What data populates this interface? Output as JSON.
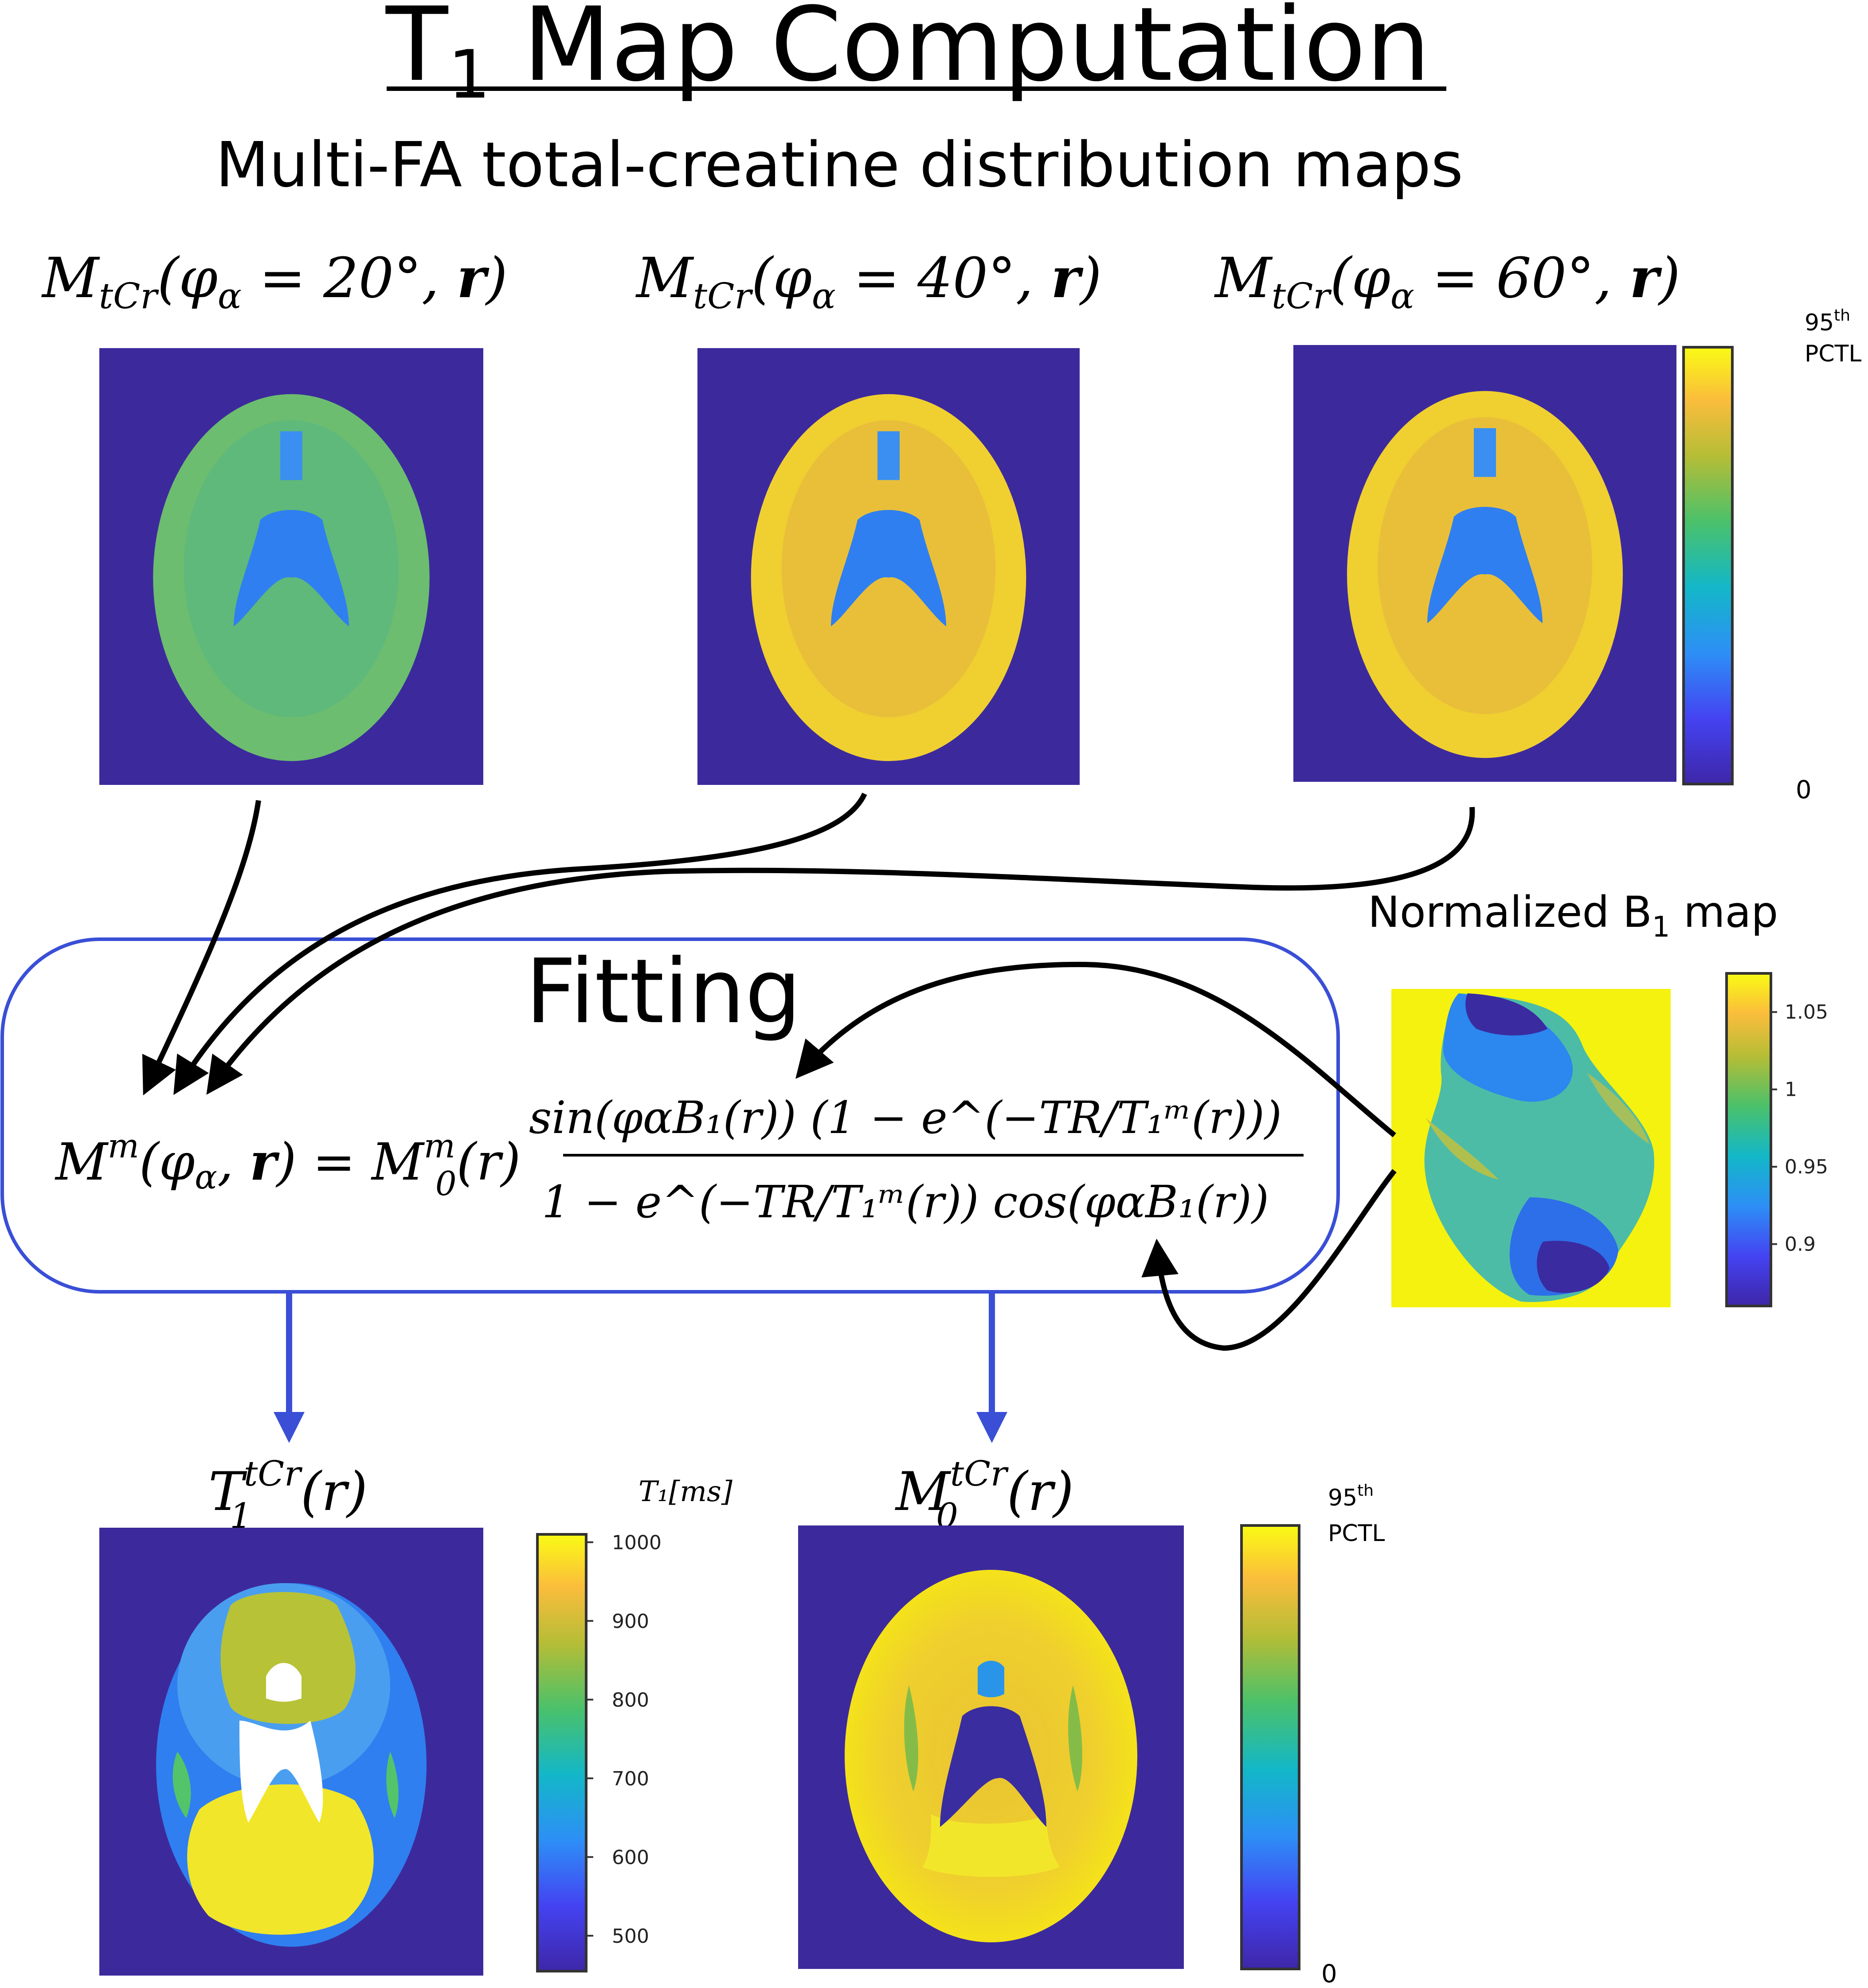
{
  "header": {
    "title_main": "T",
    "title_sub": "1",
    "title_rest": " Map Computation",
    "subtitle": "Multi-FA total-creatine distribution maps"
  },
  "input_maps": [
    {
      "label_lead": "M",
      "label_sub": "tCr",
      "label_args": "(φ",
      "label_alpha": "α",
      "label_eq": " = 20°, ",
      "label_r": "r",
      "label_close": ")",
      "flip_angle_deg": 20,
      "brightness": 0.55
    },
    {
      "label_lead": "M",
      "label_sub": "tCr",
      "label_args": "(φ",
      "label_alpha": "α",
      "label_eq": " = 40°, ",
      "label_r": "r",
      "label_close": ")",
      "flip_angle_deg": 40,
      "brightness": 0.85
    },
    {
      "label_lead": "M",
      "label_sub": "tCr",
      "label_args": "(φ",
      "label_alpha": "α",
      "label_eq": " = 60°, ",
      "label_r": "r",
      "label_close": ")",
      "flip_angle_deg": 60,
      "brightness": 0.86
    }
  ],
  "input_colorbar": {
    "top_label_num": "95",
    "top_label_sup": "th",
    "top_label_unit": "PCTL",
    "bottom_label": "0"
  },
  "b1_map": {
    "title_main": "Normalized B",
    "title_sub": "1",
    "title_rest": " map",
    "colorbar_ticks": [
      "1.05",
      "1",
      "0.95",
      "0.9"
    ],
    "colorbar_values": [
      1.05,
      1.0,
      0.95,
      0.9
    ],
    "colorbar_range": [
      0.86,
      1.075
    ]
  },
  "fitting": {
    "label": "Fitting",
    "eq_lhs_M": "M",
    "eq_lhs_sup": "m",
    "eq_lhs_args": "(φ",
    "eq_lhs_alpha": "α",
    "eq_lhs_r": "r",
    "eq_equals": "=",
    "eq_M0": "M",
    "eq_M0_sup": "m",
    "eq_M0_sub": "0",
    "eq_M0_r": "(r)",
    "numerator": "sin(φαB₁(r)) (1 − e^(−TR/T₁ᵐ(r)))",
    "denominator": "1 − e^(−TR/T₁ᵐ(r)) cos(φαB₁(r))"
  },
  "outputs": {
    "t1_map": {
      "label_lead": "T",
      "label_sup": "tCr",
      "label_sub": "1",
      "label_r": "(r)"
    },
    "m0_map": {
      "label_lead": "M",
      "label_sup": "tCr",
      "label_sub": "0",
      "label_r": "(r)"
    }
  },
  "t1_colorbar": {
    "unit_label": "T₁[ms]",
    "ticks": [
      "1000",
      "900",
      "800",
      "700",
      "600",
      "500"
    ],
    "tick_values": [
      1000,
      900,
      800,
      700,
      600,
      500
    ],
    "range": [
      455,
      1010
    ]
  },
  "m0_colorbar": {
    "top_label_num": "95",
    "top_label_sup": "th",
    "top_label_unit": "PCTL",
    "bottom_label": "0"
  },
  "colors": {
    "background_map": "#3c2a9c",
    "fitting_box_border": "#3a4fd6",
    "output_arrow": "#3a4fd6",
    "input_arrow": "#000000",
    "b1_background": "#f5f20f"
  }
}
